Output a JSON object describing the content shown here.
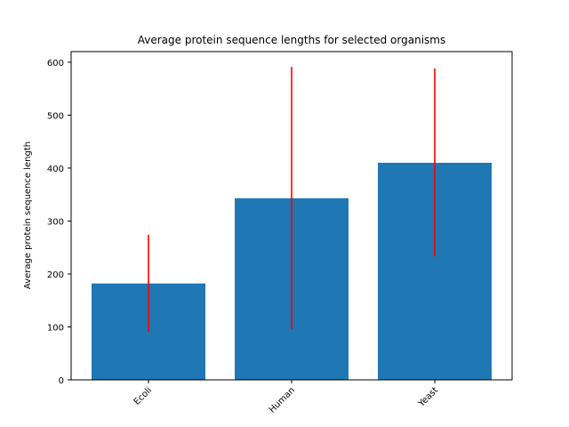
{
  "chart_data": {
    "type": "bar",
    "title": "Average protein sequence lengths for selected organisms",
    "xlabel": "",
    "ylabel": "Average protein sequence length",
    "categories": [
      "Ecoli",
      "Human",
      "Yeast"
    ],
    "values": [
      182,
      343,
      410
    ],
    "error_low": [
      90,
      95,
      233
    ],
    "error_high": [
      274,
      591,
      588
    ],
    "ylim": [
      0,
      620
    ],
    "yticks": [
      0,
      100,
      200,
      300,
      400,
      500,
      600
    ],
    "xtick_rotation_deg": 45,
    "grid": false,
    "legend": "none",
    "colors": {
      "bar": "#1f77b4",
      "error_bar": "#ff0000",
      "axis": "#000000"
    }
  }
}
